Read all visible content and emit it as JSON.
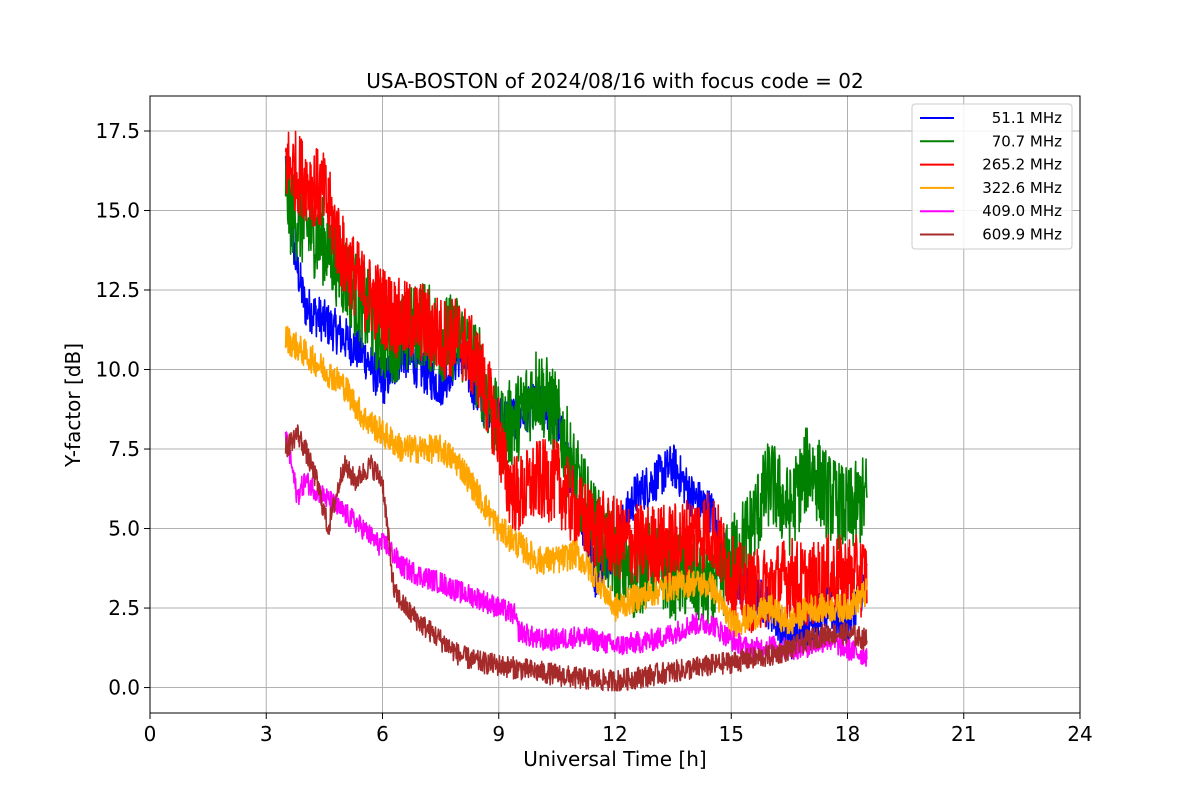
{
  "chart_data": {
    "type": "line",
    "title": "USA-BOSTON of 2024/08/16 with focus code = 02",
    "xlabel": "Universal Time [h]",
    "ylabel": "Y-factor [dB]",
    "xlim": [
      0,
      24
    ],
    "ylim": [
      -0.8,
      18.6
    ],
    "xticks": [
      0,
      3,
      6,
      9,
      12,
      15,
      18,
      21,
      24
    ],
    "xtick_labels": [
      "0",
      "3",
      "6",
      "9",
      "12",
      "15",
      "18",
      "21",
      "24"
    ],
    "yticks": [
      0,
      2.5,
      5,
      7.5,
      10,
      12.5,
      15,
      17.5
    ],
    "ytick_labels": [
      "0.0",
      "2.5",
      "5.0",
      "7.5",
      "10.0",
      "12.5",
      "15.0",
      "17.5"
    ],
    "grid": true,
    "legend_position": "top-right",
    "series": [
      {
        "name": "51.1 MHz",
        "color": "#0000ff",
        "noise": 0.7,
        "x": [
          3.5,
          3.6,
          3.75,
          4.0,
          4.5,
          5.0,
          5.5,
          6.0,
          6.5,
          7.0,
          7.5,
          8.0,
          8.5,
          9.0,
          9.5,
          10.0,
          10.5,
          11.0,
          11.5,
          12.0,
          12.5,
          13.0,
          13.5,
          14.0,
          14.5,
          15.0,
          15.5,
          16.0,
          16.5,
          17.0,
          17.5,
          18.0,
          18.5
        ],
        "y": [
          16.5,
          15.0,
          13.5,
          12.0,
          11.5,
          11.0,
          10.5,
          9.5,
          10.5,
          10.0,
          9.5,
          10.5,
          9.0,
          8.5,
          8.5,
          9.0,
          8.5,
          6.0,
          3.5,
          4.5,
          6.0,
          6.5,
          7.0,
          6.0,
          5.5,
          3.5,
          3.0,
          2.5,
          1.5,
          2.0,
          2.5,
          2.0,
          3.5
        ]
      },
      {
        "name": "70.7 MHz",
        "color": "#008000",
        "noise": 1.4,
        "x": [
          3.5,
          3.6,
          4.0,
          4.5,
          5.0,
          5.5,
          6.0,
          6.5,
          7.0,
          7.5,
          8.0,
          8.5,
          9.0,
          9.5,
          10.0,
          10.5,
          11.0,
          11.5,
          12.0,
          12.5,
          13.0,
          13.5,
          14.0,
          14.5,
          15.0,
          15.5,
          16.0,
          16.5,
          17.0,
          17.5,
          18.0,
          18.5
        ],
        "y": [
          16.0,
          15.0,
          14.5,
          14.0,
          13.0,
          12.0,
          11.0,
          11.0,
          11.5,
          11.0,
          11.0,
          10.0,
          8.0,
          8.5,
          9.5,
          8.5,
          6.5,
          5.0,
          4.0,
          3.5,
          4.0,
          3.5,
          3.5,
          3.0,
          4.0,
          5.0,
          6.5,
          5.5,
          7.0,
          6.0,
          5.5,
          6.0
        ]
      },
      {
        "name": "265.2 MHz",
        "color": "#ff0000",
        "noise": 1.3,
        "x": [
          3.5,
          4.0,
          4.5,
          5.0,
          5.5,
          6.0,
          6.5,
          7.0,
          7.5,
          8.0,
          8.5,
          9.0,
          9.2,
          9.5,
          10.0,
          10.5,
          11.0,
          11.5,
          12.0,
          12.5,
          13.0,
          13.5,
          14.0,
          14.5,
          15.0,
          15.5,
          16.0,
          16.5,
          17.0,
          17.5,
          18.0,
          18.5
        ],
        "y": [
          16.5,
          16.0,
          15.5,
          13.5,
          12.5,
          12.0,
          11.5,
          11.5,
          11.0,
          11.0,
          10.0,
          8.0,
          6.5,
          6.0,
          6.5,
          6.5,
          5.5,
          5.0,
          4.7,
          4.5,
          4.5,
          4.5,
          4.8,
          5.0,
          3.5,
          3.0,
          3.2,
          3.5,
          3.2,
          3.5,
          3.5,
          3.5
        ]
      },
      {
        "name": "322.6 MHz",
        "color": "#ffa500",
        "noise": 0.45,
        "x": [
          3.5,
          4.0,
          4.5,
          5.0,
          5.5,
          6.0,
          6.5,
          7.0,
          7.5,
          8.0,
          8.5,
          9.0,
          9.5,
          10.0,
          10.5,
          11.0,
          11.5,
          12.0,
          12.5,
          13.0,
          13.5,
          14.0,
          14.5,
          15.0,
          15.5,
          16.0,
          16.5,
          17.0,
          17.5,
          18.0,
          18.5
        ],
        "y": [
          11.0,
          10.5,
          10.0,
          9.5,
          8.5,
          8.0,
          7.5,
          7.5,
          7.5,
          7.0,
          6.0,
          5.0,
          4.5,
          4.0,
          4.0,
          4.2,
          3.5,
          2.5,
          2.8,
          3.0,
          3.2,
          3.3,
          3.2,
          2.0,
          2.2,
          2.5,
          2.0,
          2.5,
          2.5,
          2.5,
          3.0
        ]
      },
      {
        "name": "409.0 MHz",
        "color": "#ff00ff",
        "noise": 0.35,
        "x": [
          3.5,
          3.8,
          4.0,
          4.5,
          5.0,
          5.5,
          5.9,
          6.1,
          6.5,
          7.0,
          7.5,
          8.0,
          8.5,
          9.0,
          9.4,
          9.5,
          10.0,
          10.5,
          11.0,
          11.5,
          12.0,
          12.5,
          13.0,
          13.5,
          14.0,
          14.5,
          15.0,
          15.5,
          16.0,
          16.5,
          17.0,
          17.5,
          18.0,
          18.5
        ],
        "y": [
          8.0,
          6.0,
          6.5,
          6.0,
          5.5,
          5.0,
          4.5,
          4.5,
          3.8,
          3.5,
          3.3,
          3.0,
          2.8,
          2.5,
          2.3,
          1.8,
          1.5,
          1.5,
          1.6,
          1.5,
          1.3,
          1.4,
          1.5,
          1.7,
          2.0,
          2.0,
          1.5,
          1.2,
          1.3,
          1.2,
          1.3,
          1.5,
          1.2,
          1.0
        ]
      },
      {
        "name": "609.9 MHz",
        "color": "#a52a2a",
        "noise": 0.35,
        "x": [
          3.5,
          3.8,
          4.0,
          4.3,
          4.6,
          5.0,
          5.3,
          5.7,
          6.0,
          6.3,
          6.6,
          7.0,
          7.5,
          8.0,
          8.5,
          9.0,
          9.5,
          10.0,
          10.5,
          11.0,
          11.5,
          12.0,
          12.5,
          13.0,
          13.5,
          14.0,
          14.5,
          15.0,
          15.5,
          16.0,
          16.5,
          17.0,
          17.5,
          18.0,
          18.5
        ],
        "y": [
          7.5,
          8.0,
          7.5,
          6.5,
          5.0,
          7.0,
          6.5,
          7.0,
          6.5,
          3.0,
          2.5,
          2.0,
          1.5,
          1.0,
          0.8,
          0.7,
          0.6,
          0.5,
          0.4,
          0.3,
          0.25,
          0.2,
          0.3,
          0.4,
          0.5,
          0.6,
          0.7,
          0.8,
          0.9,
          1.0,
          1.2,
          1.5,
          1.7,
          1.7,
          1.5
        ]
      }
    ]
  }
}
